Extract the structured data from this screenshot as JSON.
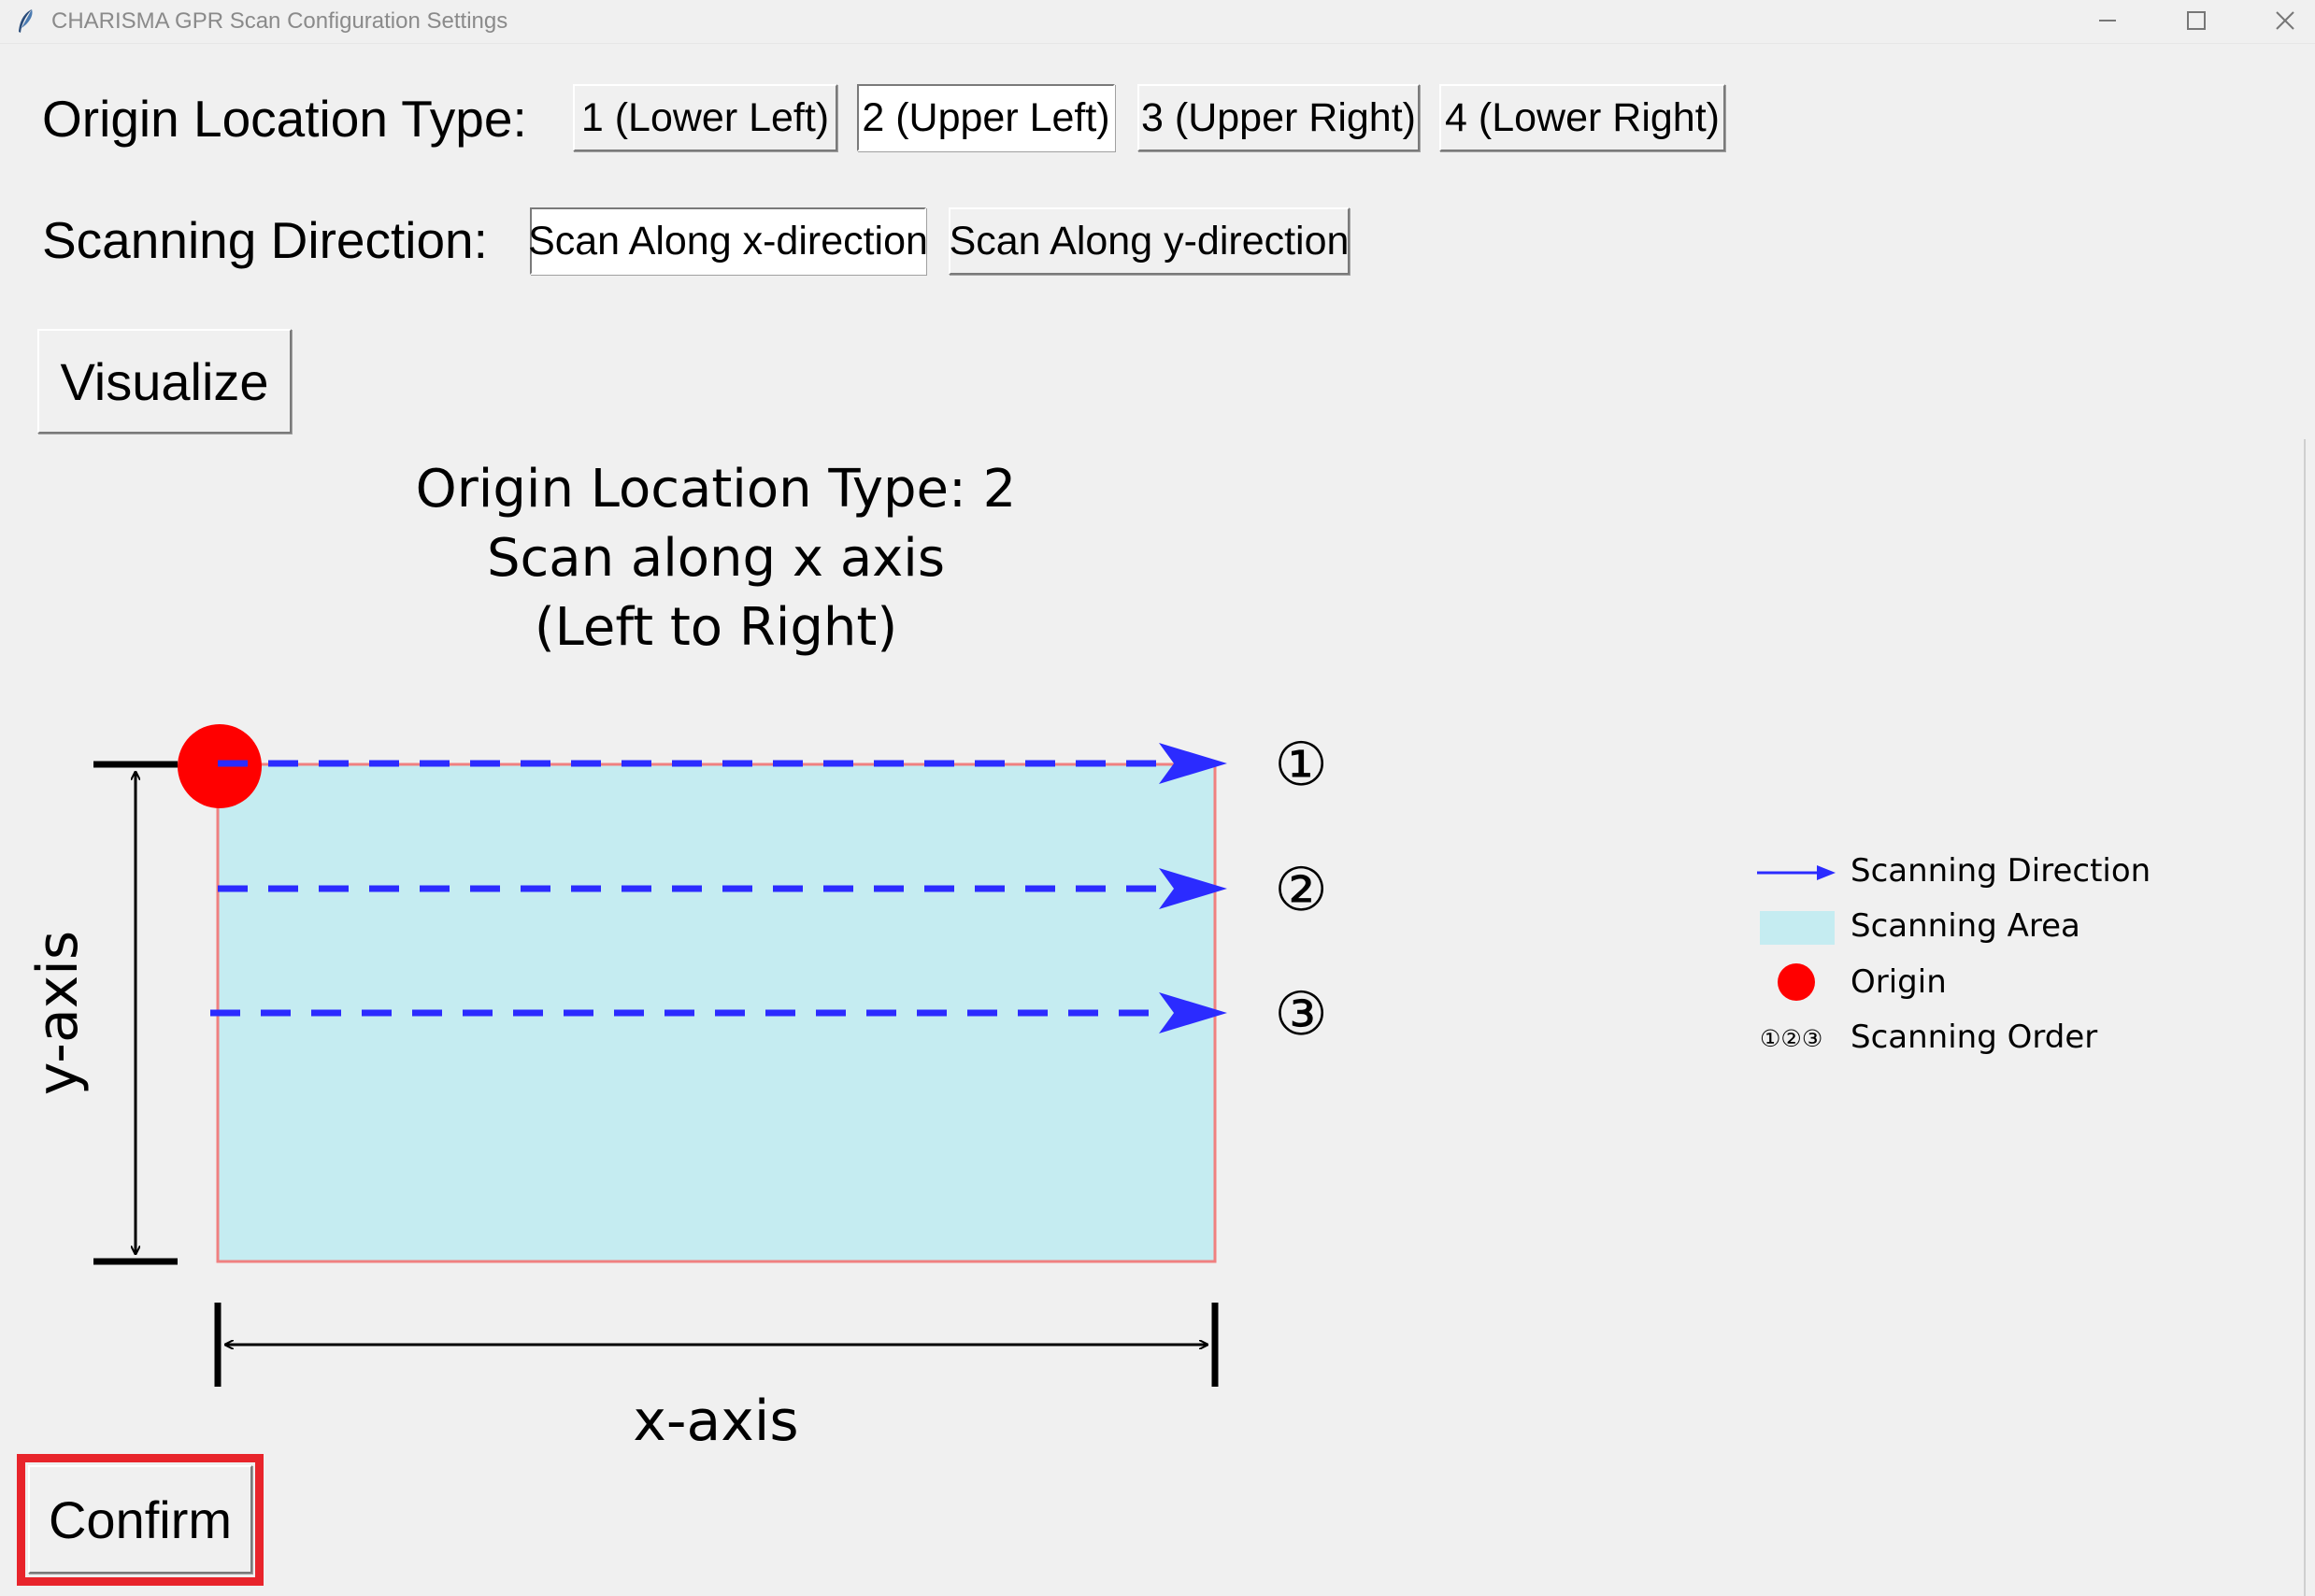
{
  "window": {
    "title": "CHARISMA GPR Scan Configuration Settings",
    "controls": [
      "minimize-icon",
      "maximize-icon",
      "close-icon"
    ]
  },
  "origin_row": {
    "label": "Origin Location Type:",
    "options": [
      "1 (Lower Left)",
      "2 (Upper Left)",
      "3 (Upper Right)",
      "4 (Lower Right)"
    ],
    "selected": "2 (Upper Left)"
  },
  "direction_row": {
    "label": "Scanning Direction:",
    "options": [
      "Scan Along x-direction",
      "Scan Along y-direction"
    ],
    "selected": "Scan Along x-direction"
  },
  "visualize_label": "Visualize",
  "confirm_label": "Confirm",
  "figure": {
    "title_lines": [
      "Origin Location Type: 2",
      "Scan along x axis",
      "(Left to Right)"
    ],
    "xlabel": "x-axis",
    "ylabel": "y-axis",
    "scan_order_labels": [
      "①",
      "②",
      "③"
    ],
    "legend": [
      {
        "label": "Scanning Direction",
        "symbol": "arrow"
      },
      {
        "label": "Scanning Area",
        "symbol": "area"
      },
      {
        "label": "Origin",
        "symbol": "dot"
      },
      {
        "label": "Scanning Order",
        "symbol": "①②③"
      }
    ],
    "colors": {
      "scan_area": "#c5ecf1",
      "area_border": "#f08080",
      "origin": "#ff0000",
      "scan_line": "#2b2bff",
      "highlight": "#e8242b"
    }
  }
}
